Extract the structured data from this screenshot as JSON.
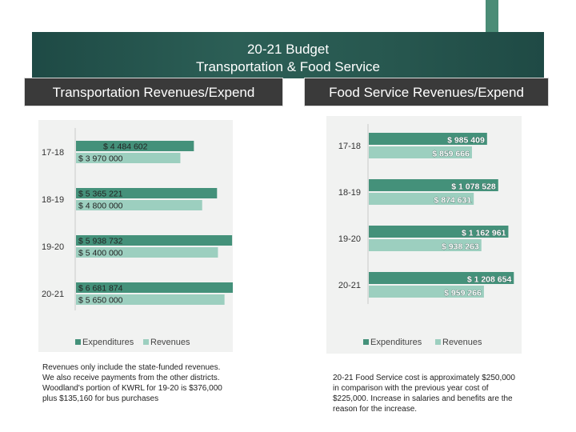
{
  "header": {
    "title_line1": "20-21 Budget",
    "title_line2": "Transportation & Food Service"
  },
  "panels": {
    "transport_title": "Transportation Revenues/Expend",
    "food_title": "Food Service Revenues/Expend"
  },
  "colors": {
    "expenditures": "#44917a",
    "revenues": "#9ccfbf",
    "band": "#25544d"
  },
  "chart_data": [
    {
      "type": "bar",
      "orientation": "horizontal",
      "title": "Transportation Revenues/Expend",
      "categories": [
        "17-18",
        "18-19",
        "19-20",
        "20-21"
      ],
      "series": [
        {
          "name": "Expenditures",
          "values": [
            4484602,
            5365221,
            5938732,
            6681874
          ],
          "labels": [
            "$ 4 484 602",
            "$ 5 365 221",
            "$ 5 938 732",
            "$ 6 681 874"
          ]
        },
        {
          "name": "Revenues",
          "values": [
            3970000,
            4800000,
            5400000,
            5650000
          ],
          "labels": [
            "$ 3 970 000",
            "$ 4 800 000",
            "$ 5 400 000",
            "$ 5 650 000"
          ]
        }
      ],
      "xlim": [
        0,
        14000000
      ],
      "legend": [
        "Expenditures",
        "Revenues"
      ],
      "legend_position": "bottom"
    },
    {
      "type": "bar",
      "orientation": "horizontal",
      "title": "Food Service Revenues/Expend",
      "categories": [
        "17-18",
        "18-19",
        "19-20",
        "20-21"
      ],
      "series": [
        {
          "name": "Expenditures",
          "values": [
            985409,
            1078528,
            1162961,
            1208654
          ],
          "labels": [
            "$ 985 409",
            "$ 1 078 528",
            "$ 1 162 961",
            "$ 1 208 654"
          ]
        },
        {
          "name": "Revenues",
          "values": [
            859666,
            874631,
            938263,
            959266
          ],
          "labels": [
            "$ 859 666",
            "$ 874 631",
            "$ 938 263",
            "$ 959 266"
          ]
        }
      ],
      "xlim": [
        0,
        2400000
      ],
      "legend": [
        "Expenditures",
        "Revenues"
      ],
      "legend_position": "bottom"
    }
  ],
  "notes": {
    "transport": "Revenues only include the state-funded revenues.  We also receive payments from the other districts.  Woodland's portion of KWRL for 19-20 is $376,000 plus $135,160 for bus purchases",
    "food": "20-21 Food Service cost is approximately $250,000 in comparison with the previous year cost of $225,000.  Increase in salaries and benefits are the reason for the increase."
  }
}
